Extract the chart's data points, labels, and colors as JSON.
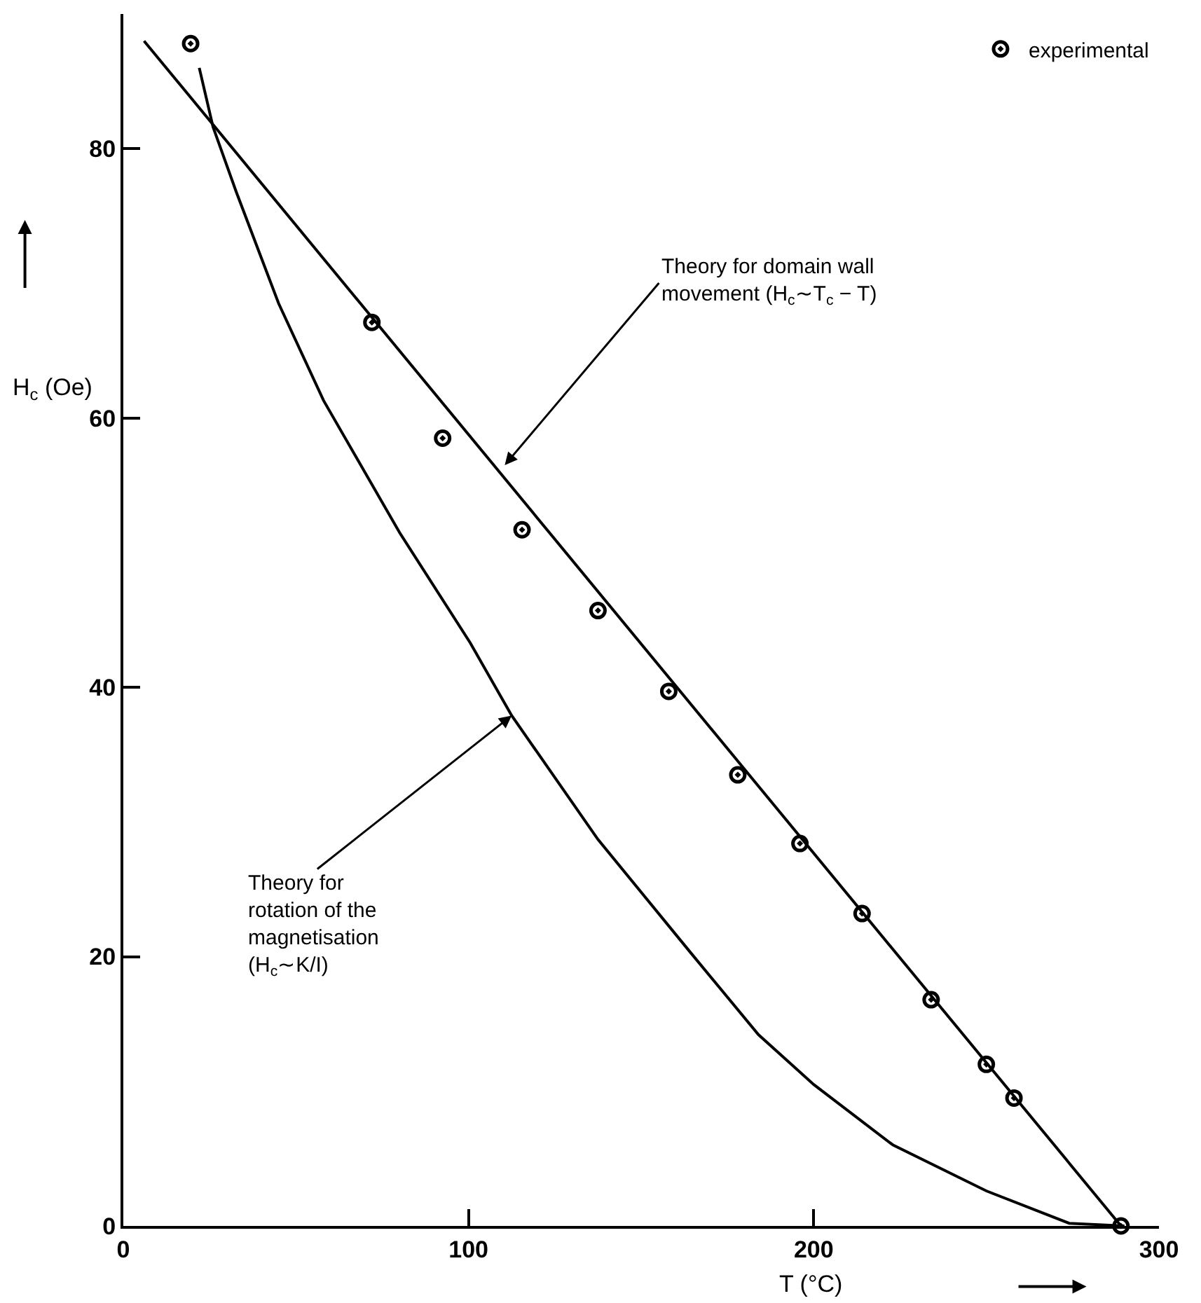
{
  "chart_data": {
    "type": "scatter",
    "xlabel": "T (°C)",
    "ylabel": "H$_{c}$ (Oe)",
    "xlim": [
      0,
      300
    ],
    "xticks": [
      0,
      100,
      200,
      300
    ],
    "ylim": [
      0,
      90
    ],
    "yticks": [
      0,
      20,
      40,
      60,
      80
    ],
    "legend": "top right",
    "marker": "circle",
    "series": [
      {
        "name": "experimental",
        "color": "#000000",
        "x": [
          19.5,
          72,
          92.5,
          115.5,
          137.5,
          158,
          178,
          196,
          214,
          234,
          250,
          258,
          289
        ],
        "values": [
          87.8,
          67.1,
          58.5,
          51.7,
          45.7,
          39.7,
          33.5,
          28.4,
          23.2,
          16.8,
          12,
          9.5,
          0
        ]
      },
      {
        "type": "line",
        "color": "#000000",
        "marker": "none",
        "line_style": "solid",
        "x": [
          6,
          289
        ],
        "values": [
          88,
          0
        ]
      },
      {
        "type": "line",
        "color": "#000000",
        "marker": "none",
        "line_style": "solid",
        "x": [
          22,
          26,
          32.7,
          45,
          58,
          80,
          100.5,
          112.5,
          137.5,
          164,
          184,
          200,
          223,
          250,
          274,
          290
        ],
        "values": [
          86,
          81.6,
          76.8,
          68.5,
          61.3,
          51.5,
          43.3,
          37.9,
          28.7,
          20.4,
          14.2,
          10.5,
          6,
          2.6,
          0.2,
          0
        ]
      }
    ],
    "annotations": [
      {
        "text": "Theory for domain wall\nmovement (H$_{c}$∼T$_{c}$ − T)",
        "x": 110.5,
        "y": 56.5
      },
      {
        "text": "Theory for\nrotation of the\nmagnetisation\n(H$_{c}$∼K/I)",
        "x": 112.5,
        "y": 37.9
      }
    ]
  }
}
